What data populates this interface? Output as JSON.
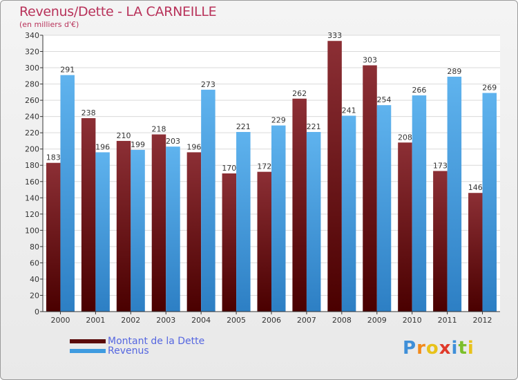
{
  "chart_data": {
    "type": "bar",
    "title": "Revenus/Dette - LA CARNEILLE",
    "subtitle": "(en milliers d'€)",
    "categories": [
      "2000",
      "2001",
      "2002",
      "2003",
      "2004",
      "2005",
      "2006",
      "2007",
      "2008",
      "2009",
      "2010",
      "2011",
      "2012"
    ],
    "series": [
      {
        "name": "Montant de la Dette",
        "color_top": "#8c2f35",
        "color_bottom": "#4a0000",
        "values": [
          183,
          238,
          210,
          218,
          196,
          170,
          172,
          262,
          333,
          303,
          208,
          173,
          146
        ]
      },
      {
        "name": "Revenus",
        "color_top": "#5fb3ee",
        "color_bottom": "#2d7fc4",
        "values": [
          291,
          196,
          199,
          203,
          273,
          221,
          229,
          221,
          241,
          254,
          266,
          289,
          269
        ]
      }
    ],
    "ylim": [
      0,
      340
    ],
    "yticks": [
      0,
      20,
      40,
      60,
      80,
      100,
      120,
      140,
      160,
      180,
      200,
      220,
      240,
      260,
      280,
      300,
      320,
      340
    ],
    "grid": true,
    "legend_position": "bottom-left"
  },
  "legend": {
    "debt_label": "Montant de la Dette",
    "revenue_label": "Revenus",
    "debt_color": "#5a0a0a",
    "revenue_color": "#3f9be0"
  },
  "brand": {
    "letters": [
      "P",
      "r",
      "o",
      "x",
      "i",
      "t",
      "i"
    ],
    "colors": [
      "#3f8fd8",
      "#f28a1b",
      "#e8c21a",
      "#e03a2a",
      "#3f8fd8",
      "#7bbf2a",
      "#e8c21a"
    ]
  }
}
